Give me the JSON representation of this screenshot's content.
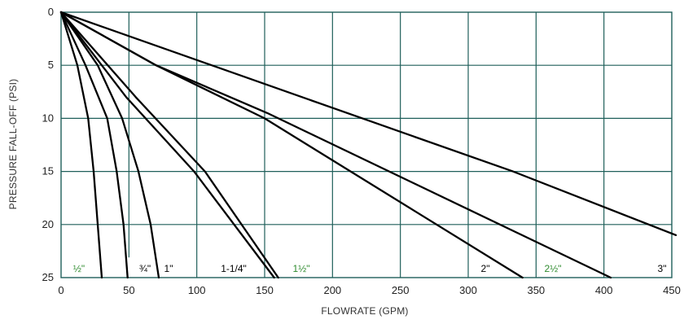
{
  "chart_data": {
    "type": "line",
    "title": "",
    "xlabel": "FLOWRATE (GPM)",
    "ylabel": "PRESSURE FALL-OFF (PSI)",
    "xlim": [
      0,
      450
    ],
    "ylim": [
      0,
      25
    ],
    "y_inverted": true,
    "x_ticks": [
      "0",
      "50",
      "100",
      "150",
      "200",
      "250",
      "300",
      "350",
      "400",
      "450"
    ],
    "y_ticks": [
      "0",
      "5",
      "10",
      "15",
      "20",
      "25"
    ],
    "grid": true,
    "grid_color": "#1f5f5a",
    "line_color": "#000000",
    "series": [
      {
        "name": "½\"",
        "color": "#2e8b2e",
        "points": [
          [
            0,
            0
          ],
          [
            12,
            5
          ],
          [
            20,
            10
          ],
          [
            24,
            15
          ],
          [
            27,
            20
          ],
          [
            30,
            25
          ]
        ]
      },
      {
        "name": "¾\"",
        "color": "#000000",
        "points": [
          [
            0,
            0
          ],
          [
            18,
            5
          ],
          [
            34,
            10
          ],
          [
            41,
            15
          ],
          [
            46,
            20
          ],
          [
            49,
            25
          ]
        ]
      },
      {
        "name": "1\"",
        "color": "#000000",
        "points": [
          [
            0,
            0
          ],
          [
            27,
            5
          ],
          [
            45,
            10
          ],
          [
            57,
            15
          ],
          [
            66,
            20
          ],
          [
            72,
            25
          ]
        ]
      },
      {
        "name": "1-1/4\"",
        "color": "#000000",
        "points": [
          [
            0,
            0
          ],
          [
            55,
            8
          ],
          [
            106,
            15
          ],
          [
            160,
            25
          ]
        ]
      },
      {
        "name": "1½\"",
        "color": "#2e8b2e",
        "points": [
          [
            0,
            0
          ],
          [
            48,
            8
          ],
          [
            98,
            15
          ],
          [
            157,
            25
          ]
        ]
      },
      {
        "name": "2\"",
        "color": "#000000",
        "points": [
          [
            0,
            0
          ],
          [
            70,
            5
          ],
          [
            150,
            10
          ],
          [
            340,
            25
          ]
        ]
      },
      {
        "name": "2½\"",
        "color": "#2e8b2e",
        "points": [
          [
            0,
            0
          ],
          [
            70,
            5
          ],
          [
            152,
            9.5
          ],
          [
            405,
            25
          ]
        ]
      },
      {
        "name": "3\"",
        "color": "#000000",
        "points": [
          [
            0,
            0
          ],
          [
            333,
            15
          ],
          [
            453,
            21
          ]
        ]
      }
    ]
  }
}
